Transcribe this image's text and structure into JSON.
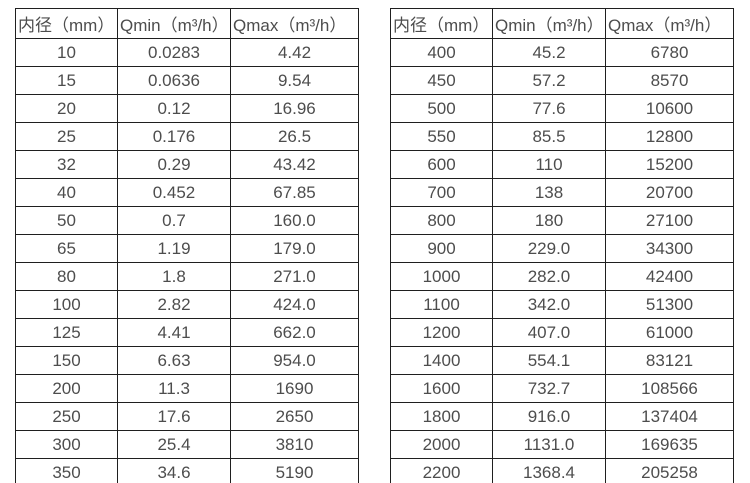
{
  "styles": {
    "background": "#ffffff",
    "border_color": "#1f1f1f",
    "text_color": "#4d4d4d"
  },
  "tables": [
    {
      "name": "flow-spec-small-diameters",
      "headers": [
        "内径（mm）",
        "Qmin（m³/h）",
        "Qmax（m³/h）"
      ],
      "rows": [
        [
          "10",
          "0.0283",
          "4.42"
        ],
        [
          "15",
          "0.0636",
          "9.54"
        ],
        [
          "20",
          "0.12",
          "16.96"
        ],
        [
          "25",
          "0.176",
          "26.5"
        ],
        [
          "32",
          "0.29",
          "43.42"
        ],
        [
          "40",
          "0.452",
          "67.85"
        ],
        [
          "50",
          "0.7",
          "160.0"
        ],
        [
          "65",
          "1.19",
          "179.0"
        ],
        [
          "80",
          "1.8",
          "271.0"
        ],
        [
          "100",
          "2.82",
          "424.0"
        ],
        [
          "125",
          "4.41",
          "662.0"
        ],
        [
          "150",
          "6.63",
          "954.0"
        ],
        [
          "200",
          "11.3",
          "1690"
        ],
        [
          "250",
          "17.6",
          "2650"
        ],
        [
          "300",
          "25.4",
          "3810"
        ],
        [
          "350",
          "34.6",
          "5190"
        ]
      ]
    },
    {
      "name": "flow-spec-large-diameters",
      "headers": [
        "内径（mm）",
        "Qmin（m³/h）",
        "Qmax（m³/h）"
      ],
      "rows": [
        [
          "400",
          "45.2",
          "6780"
        ],
        [
          "450",
          "57.2",
          "8570"
        ],
        [
          "500",
          "77.6",
          "10600"
        ],
        [
          "550",
          "85.5",
          "12800"
        ],
        [
          "600",
          "110",
          "15200"
        ],
        [
          "700",
          "138",
          "20700"
        ],
        [
          "800",
          "180",
          "27100"
        ],
        [
          "900",
          "229.0",
          "34300"
        ],
        [
          "1000",
          "282.0",
          "42400"
        ],
        [
          "1100",
          "342.0",
          "51300"
        ],
        [
          "1200",
          "407.0",
          "61000"
        ],
        [
          "1400",
          "554.1",
          "83121"
        ],
        [
          "1600",
          "732.7",
          "108566"
        ],
        [
          "1800",
          "916.0",
          "137404"
        ],
        [
          "2000",
          "1131.0",
          "169635"
        ],
        [
          "2200",
          "1368.4",
          "205258"
        ]
      ]
    }
  ]
}
